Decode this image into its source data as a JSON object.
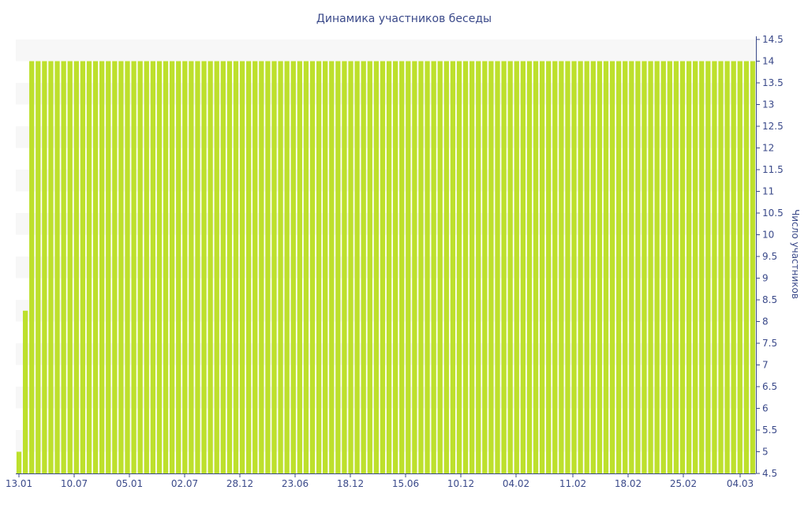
{
  "chart_data": {
    "type": "bar",
    "title": "Динамика участников беседы",
    "xlabel": "",
    "ylabel": "Число участников",
    "ylim": [
      4.5,
      14.5
    ],
    "y_ticks": [
      4.5,
      5,
      5.5,
      6,
      6.5,
      7,
      7.5,
      8,
      8.5,
      9,
      9.5,
      10,
      10.5,
      11,
      11.5,
      12,
      12.5,
      13,
      13.5,
      14,
      14.5
    ],
    "y_axis_side": "right",
    "x_tick_labels": [
      "13.01",
      "10.07",
      "05.01",
      "02.07",
      "28.12",
      "23.06",
      "18.12",
      "15.06",
      "10.12",
      "04.02",
      "11.02",
      "18.02",
      "25.02",
      "04.03"
    ],
    "bar_color": "#bde02c",
    "band_color": "#f7f7f7",
    "bar_count": 116,
    "values_note": "first bar 5, second 8.25, remaining 114 bars at 14",
    "values_head": [
      5,
      8.25
    ],
    "values_tail_value": 14,
    "grid": "horizontal bands"
  }
}
